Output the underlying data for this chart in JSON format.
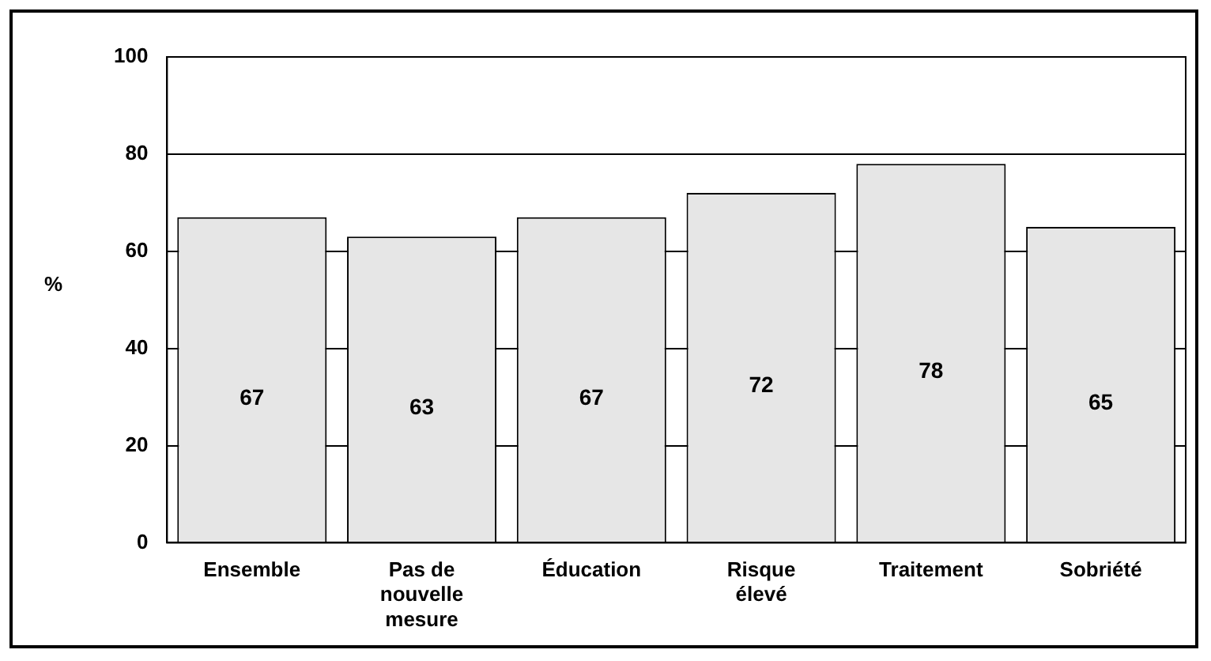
{
  "chart_data": {
    "type": "bar",
    "ylabel": "%",
    "categories": [
      "Ensemble",
      "Pas de nouvelle mesure",
      "Éducation",
      "Risque élevé",
      "Traitement",
      "Sobriété"
    ],
    "values": [
      67,
      63,
      67,
      72,
      78,
      65
    ],
    "color": "#e6e6e6",
    "ylim": [
      0,
      100
    ],
    "yticks": [
      0,
      20,
      40,
      60,
      80,
      100
    ],
    "grid": "y",
    "data_labels": true,
    "legend": false
  }
}
